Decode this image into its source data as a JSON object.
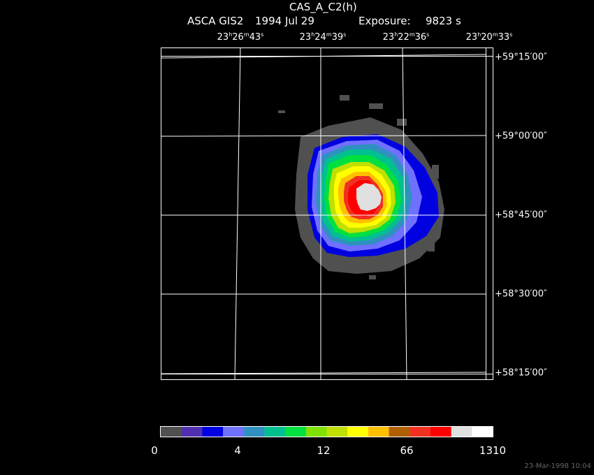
{
  "header": {
    "object": "CAS_A_C2(h)",
    "instrument": "ASCA GIS2",
    "date": "1994 Jul 29",
    "exposure_label": "Exposure:",
    "exposure_value": "9823 s"
  },
  "ra_ticks": [
    {
      "h": "23",
      "m": "26",
      "s": "43"
    },
    {
      "h": "23",
      "m": "24",
      "s": "39"
    },
    {
      "h": "23",
      "m": "22",
      "s": "36"
    },
    {
      "h": "23",
      "m": "20",
      "s": "33"
    }
  ],
  "dec_ticks": [
    "+59°15′00″",
    "+59°00′00″",
    "+58°45′00″",
    "+58°30′00″",
    "+58°15′00″"
  ],
  "colorbar": {
    "labels": [
      "0",
      "4",
      "12",
      "66",
      "1310"
    ],
    "colors": [
      "#505050",
      "#5030b0",
      "#0000e0",
      "#7070ff",
      "#3090c0",
      "#00c090",
      "#00e040",
      "#80e000",
      "#c0e000",
      "#ffff00",
      "#ffc000",
      "#b06000",
      "#f03020",
      "#ff0000",
      "#e0e0e0",
      "#ffffff"
    ]
  },
  "footer": {
    "timestamp": "23-Mar-1998 10:04"
  }
}
